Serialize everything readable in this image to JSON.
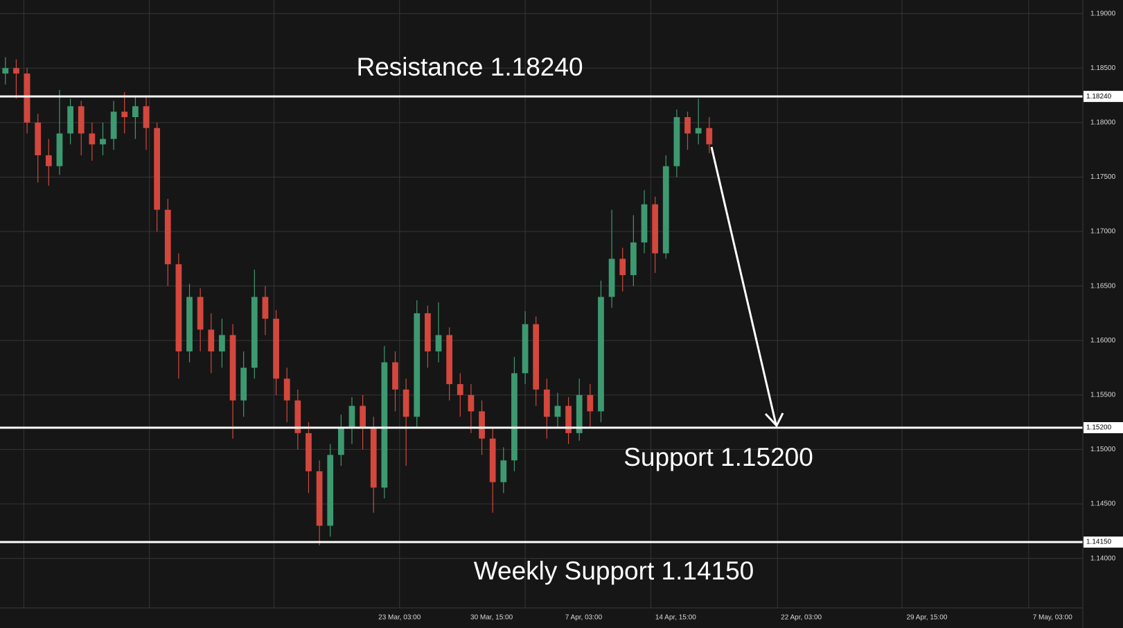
{
  "chart_data": {
    "type": "candlestick",
    "ylim": [
      1.13546,
      1.19125
    ],
    "yticks": [
      {
        "value": 1.19,
        "label": "1.19000"
      },
      {
        "value": 1.185,
        "label": "1.18500"
      },
      {
        "value": 1.18,
        "label": "1.18000"
      },
      {
        "value": 1.175,
        "label": "1.17500"
      },
      {
        "value": 1.17,
        "label": "1.17000"
      },
      {
        "value": 1.165,
        "label": "1.16500"
      },
      {
        "value": 1.16,
        "label": "1.16000"
      },
      {
        "value": 1.155,
        "label": "1.15500"
      },
      {
        "value": 1.15,
        "label": "1.15000"
      },
      {
        "value": 1.145,
        "label": "1.14500"
      },
      {
        "value": 1.14,
        "label": "1.14000"
      }
    ],
    "xlim": [
      0,
      100
    ],
    "xticks": [
      {
        "value": 36.9,
        "label": "23 Mar, 03:00"
      },
      {
        "value": 45.4,
        "label": "30 Mar, 15:00"
      },
      {
        "value": 53.9,
        "label": "7 Apr, 03:00"
      },
      {
        "value": 62.4,
        "label": "14 Apr, 15:00"
      },
      {
        "value": 74.0,
        "label": "22 Apr, 03:00"
      },
      {
        "value": 85.6,
        "label": "29 Apr, 15:00"
      },
      {
        "value": 97.2,
        "label": "7 May, 03:00"
      }
    ],
    "xgrid": [
      2.2,
      13.8,
      25.3,
      36.9,
      48.5,
      60.1,
      71.8,
      83.3,
      95.0
    ],
    "grid": true,
    "up_color": "#3d9970",
    "down_color": "#d3473d",
    "series": {
      "open": [
        1.1845,
        1.185,
        1.1845,
        1.18,
        1.177,
        1.176,
        1.179,
        1.1815,
        1.179,
        1.178,
        1.1785,
        1.181,
        1.1805,
        1.1815,
        1.1795,
        1.172,
        1.167,
        1.159,
        1.164,
        1.161,
        1.159,
        1.1605,
        1.1545,
        1.1575,
        1.164,
        1.162,
        1.1565,
        1.1545,
        1.1515,
        1.148,
        1.143,
        1.1495,
        1.152,
        1.154,
        1.152,
        1.1465,
        1.158,
        1.1555,
        1.153,
        1.1625,
        1.159,
        1.1605,
        1.156,
        1.155,
        1.1535,
        1.151,
        1.147,
        1.149,
        1.157,
        1.1615,
        1.1555,
        1.153,
        1.154,
        1.1515,
        1.155,
        1.1535,
        1.164,
        1.1675,
        1.166,
        1.169,
        1.1725,
        1.168,
        1.176,
        1.1805,
        1.179,
        1.1795
      ],
      "high": [
        1.186,
        1.1858,
        1.185,
        1.1808,
        1.1785,
        1.183,
        1.1822,
        1.182,
        1.18,
        1.18,
        1.182,
        1.1828,
        1.1825,
        1.1825,
        1.18,
        1.173,
        1.168,
        1.1652,
        1.1648,
        1.1625,
        1.162,
        1.1615,
        1.159,
        1.1665,
        1.165,
        1.1628,
        1.1575,
        1.1555,
        1.1525,
        1.149,
        1.1505,
        1.1532,
        1.1548,
        1.155,
        1.153,
        1.1595,
        1.159,
        1.1565,
        1.1637,
        1.1632,
        1.1635,
        1.1612,
        1.157,
        1.156,
        1.1545,
        1.152,
        1.1502,
        1.1585,
        1.1627,
        1.1622,
        1.1565,
        1.1552,
        1.1548,
        1.1565,
        1.156,
        1.1655,
        1.172,
        1.1685,
        1.1715,
        1.1738,
        1.1732,
        1.177,
        1.1812,
        1.181,
        1.1822,
        1.1805
      ],
      "low": [
        1.1835,
        1.1822,
        1.179,
        1.1745,
        1.1742,
        1.1752,
        1.178,
        1.177,
        1.1765,
        1.177,
        1.1775,
        1.179,
        1.1785,
        1.1775,
        1.17,
        1.165,
        1.1565,
        1.158,
        1.159,
        1.157,
        1.1575,
        1.151,
        1.153,
        1.1565,
        1.1605,
        1.155,
        1.1525,
        1.15,
        1.146,
        1.1412,
        1.142,
        1.1485,
        1.1505,
        1.15,
        1.1442,
        1.1455,
        1.1535,
        1.1485,
        1.152,
        1.1575,
        1.158,
        1.1545,
        1.153,
        1.1515,
        1.1495,
        1.1442,
        1.146,
        1.148,
        1.156,
        1.154,
        1.151,
        1.152,
        1.1505,
        1.1508,
        1.152,
        1.1525,
        1.163,
        1.1645,
        1.165,
        1.168,
        1.1662,
        1.1675,
        1.175,
        1.1775,
        1.178,
        1.1772
      ],
      "close": [
        1.185,
        1.1845,
        1.18,
        1.177,
        1.176,
        1.179,
        1.1815,
        1.179,
        1.178,
        1.1785,
        1.181,
        1.1805,
        1.1815,
        1.1795,
        1.172,
        1.167,
        1.159,
        1.164,
        1.161,
        1.159,
        1.1605,
        1.1545,
        1.1575,
        1.164,
        1.162,
        1.1565,
        1.1545,
        1.1515,
        1.148,
        1.143,
        1.1495,
        1.152,
        1.154,
        1.152,
        1.1465,
        1.158,
        1.1555,
        1.153,
        1.1625,
        1.159,
        1.1605,
        1.156,
        1.155,
        1.1535,
        1.151,
        1.147,
        1.149,
        1.157,
        1.1615,
        1.1555,
        1.153,
        1.154,
        1.1515,
        1.155,
        1.1535,
        1.164,
        1.1675,
        1.166,
        1.169,
        1.1725,
        1.168,
        1.176,
        1.1805,
        1.179,
        1.1795,
        1.178
      ]
    },
    "levels": [
      {
        "value": 1.1824,
        "label": "1.18240",
        "text": "Resistance 1.18240"
      },
      {
        "value": 1.152,
        "label": "1.15200",
        "text": "Support 1.15200"
      },
      {
        "value": 1.1415,
        "label": "1.14150",
        "text": "Weekly Support 1.14150"
      }
    ]
  }
}
